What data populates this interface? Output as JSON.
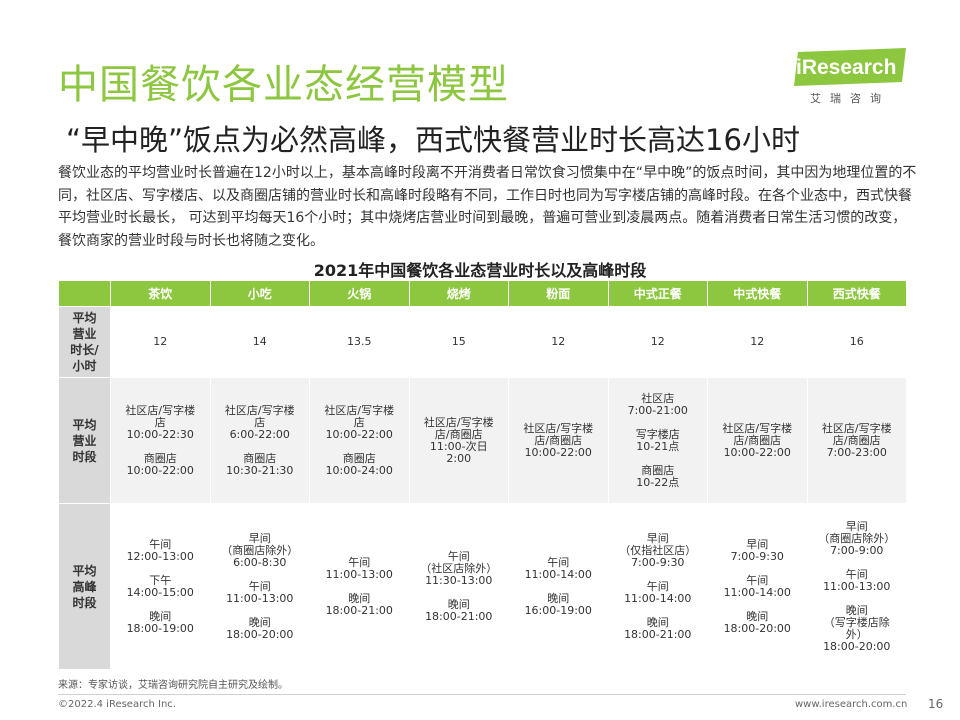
{
  "header": {
    "title": "中国餐饮各业态经营模型",
    "subtitle": "“早中晚”饭点为必然高峰，西式快餐营业时长高达16小时"
  },
  "logo": {
    "text": "iResearch",
    "sub": "艾瑞咨询",
    "color": "#8dc63f"
  },
  "intro": "餐饮业态的平均营业时长普遍在12小时以上，基本高峰时段离不开消费者日常饮食习惯集中在“早中晚”的饭点时间，其中因为地理位置的不同，社区店、写字楼店、以及商圈店铺的营业时长和高峰时段略有不同，工作日时也同为写字楼店铺的高峰时段。在各个业态中，西式快餐平均营业时长最长，  可达到平均每天16个小时；其中烧烤店营业时间到最晚，普遍可营业到凌晨两点。随着消费者日常生活习惯的改变，餐饮商家的营业时段与时长也将随之变化。",
  "table": {
    "title": "2021年中国餐饮各业态营业时长以及高峰时段",
    "columns": [
      "茶饮",
      "小吃",
      "火锅",
      "烧烤",
      "粉面",
      "中式正餐",
      "中式快餐",
      "西式快餐"
    ],
    "rows": [
      {
        "label": "平均\n营业\n时长/\n小时",
        "cells": [
          "12",
          "14",
          "13.5",
          "15",
          "12",
          "12",
          "12",
          "16"
        ]
      },
      {
        "label": "平均\n营业\n时段",
        "cells": [
          "社区店/写字楼\n店\n10:00-22:30\n\n商圈店\n10:00-22:00",
          "社区店/写字楼\n店\n6:00-22:00\n\n商圈店\n10:30-21:30",
          "社区店/写字楼\n店\n10:00-22:00\n\n商圈店\n10:00-24:00",
          "社区店/写字楼\n店/商圈店\n11:00-次日\n2:00",
          "社区店/写字楼\n店/商圈店\n10:00-22:00",
          "社区店\n7:00-21:00\n\n写字楼店\n10-21点\n\n商圈店\n10-22点",
          "社区店/写字楼\n店/商圈店\n10:00-22:00",
          "社区店/写字楼\n店/商圈店\n7:00-23:00"
        ]
      },
      {
        "label": "平均\n高峰\n时段",
        "cells": [
          "午间\n12:00-13:00\n\n下午\n14:00-15:00\n\n晚间\n18:00-19:00",
          "早间\n（商圈店除外）\n6:00-8:30\n\n午间\n11:00-13:00\n\n晚间\n18:00-20:00",
          "午间\n11:00-13:00\n\n晚间\n18:00-21:00",
          "午间\n（社区店除外）\n11:30-13:00\n\n晚间\n18:00-21:00",
          "午间\n11:00-14:00\n\n晚间\n16:00-19:00",
          "早间\n（仅指社区店）\n7:00-9:30\n\n午间\n11:00-14:00\n\n晚间\n18:00-21:00",
          "早间\n7:00-9:30\n\n午间\n11:00-14:00\n\n晚间\n18:00-20:00",
          "早间\n（商圈店除外）\n7:00-9:00\n\n午间\n11:00-13:00\n\n晚间\n（写字楼店除\n外）\n18:00-20:00"
        ]
      }
    ]
  },
  "footer": {
    "source": "来源：专家访谈，艾瑞咨询研究院自主研究及绘制。",
    "copyright": "©2022.4 iResearch Inc.",
    "website": "www.iresearch.com.cn",
    "page": "16"
  }
}
